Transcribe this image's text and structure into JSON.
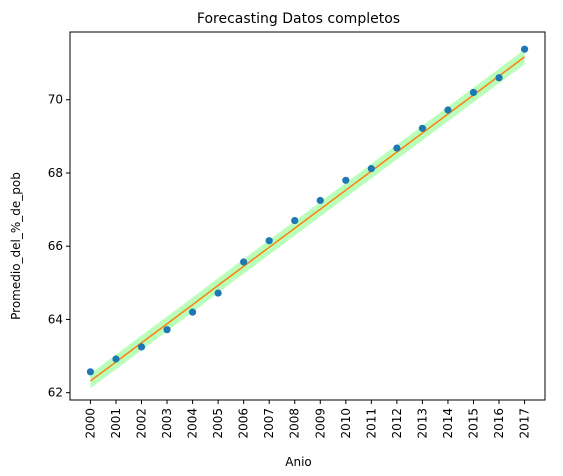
{
  "chart_data": {
    "type": "scatter",
    "title": "Forecasting Datos completos",
    "xlabel": "Anio",
    "ylabel": "Promedio_del_%_de_pob",
    "x": [
      2000,
      2001,
      2002,
      2003,
      2004,
      2005,
      2006,
      2007,
      2008,
      2009,
      2010,
      2011,
      2012,
      2013,
      2014,
      2015,
      2016,
      2017
    ],
    "x_tick_labels": [
      "2000",
      "2001",
      "2002",
      "2003",
      "2004",
      "2005",
      "2006",
      "2007",
      "2008",
      "2009",
      "2010",
      "2011",
      "2012",
      "2013",
      "2014",
      "2015",
      "2016",
      "2017"
    ],
    "y_ticks": [
      62,
      64,
      66,
      68,
      70
    ],
    "y_tick_labels": [
      "62",
      "64",
      "66",
      "68",
      "70"
    ],
    "xlim": [
      1999.2,
      2017.8
    ],
    "ylim": [
      61.8,
      71.85
    ],
    "grid": false,
    "legend": "none",
    "series": [
      {
        "kind": "points",
        "color": "#1f77b4",
        "values": [
          62.57,
          62.92,
          63.25,
          63.72,
          64.2,
          64.72,
          65.57,
          66.15,
          66.7,
          67.25,
          67.8,
          68.12,
          68.68,
          69.22,
          69.72,
          70.2,
          70.6,
          71.38
        ]
      },
      {
        "kind": "fit-line",
        "color": "#ff7f0e",
        "values": [
          62.32,
          62.84,
          63.36,
          63.88,
          64.4,
          64.93,
          65.45,
          65.97,
          66.49,
          67.01,
          67.53,
          68.05,
          68.57,
          69.09,
          69.61,
          70.13,
          70.65,
          71.17
        ]
      },
      {
        "kind": "confidence-band",
        "color": "#7fff7f",
        "lower": [
          62.12,
          62.64,
          63.16,
          63.68,
          64.2,
          64.73,
          65.25,
          65.77,
          66.29,
          66.81,
          67.33,
          67.85,
          68.37,
          68.89,
          69.41,
          69.93,
          70.45,
          70.97
        ],
        "upper": [
          62.52,
          63.04,
          63.56,
          64.08,
          64.6,
          65.13,
          65.65,
          66.17,
          66.69,
          67.21,
          67.73,
          68.25,
          68.77,
          69.29,
          69.81,
          70.33,
          70.85,
          71.37
        ]
      }
    ]
  }
}
